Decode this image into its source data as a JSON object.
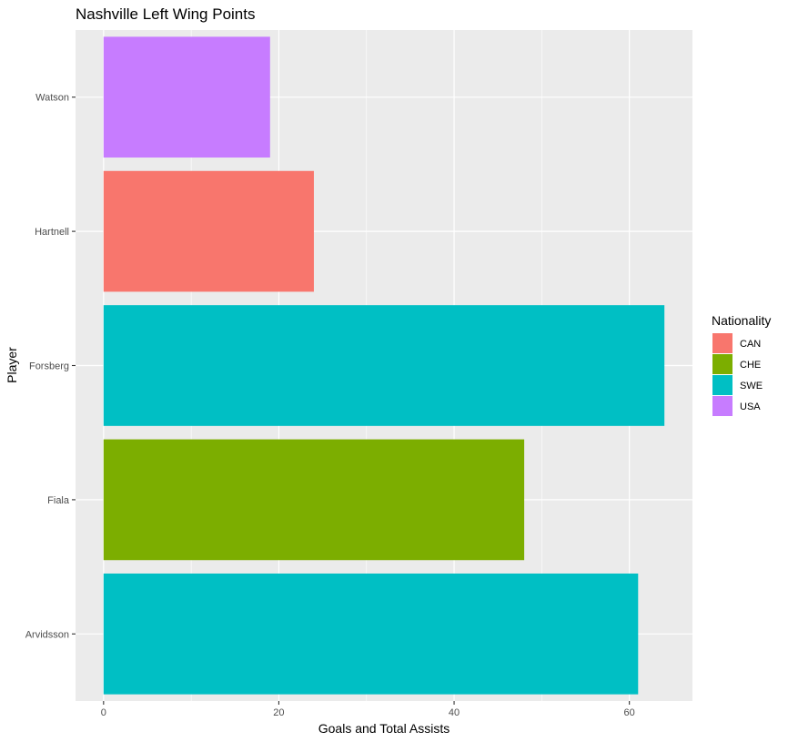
{
  "chart_data": {
    "type": "bar",
    "orientation": "horizontal",
    "title": "Nashville Left Wing Points",
    "xlabel": "Goals and Total Assists",
    "ylabel": "Player",
    "categories": [
      "Arvidsson",
      "Fiala",
      "Forsberg",
      "Hartnell",
      "Watson"
    ],
    "values": [
      61,
      48,
      64,
      24,
      19
    ],
    "nationality": [
      "SWE",
      "CHE",
      "SWE",
      "CAN",
      "USA"
    ],
    "xlim": [
      -3.2,
      67.2
    ],
    "xticks": [
      0,
      20,
      40,
      60
    ],
    "grid": true,
    "legend": {
      "title": "Nationality",
      "position": "right",
      "entries": [
        {
          "label": "CAN",
          "color": "#F8766D"
        },
        {
          "label": "CHE",
          "color": "#7CAE00"
        },
        {
          "label": "SWE",
          "color": "#00BFC4"
        },
        {
          "label": "USA",
          "color": "#C77CFF"
        }
      ]
    },
    "colors": {
      "CAN": "#F8766D",
      "CHE": "#7CAE00",
      "SWE": "#00BFC4",
      "USA": "#C77CFF",
      "panel_background": "#EBEBEB",
      "grid": "#FFFFFF"
    }
  }
}
